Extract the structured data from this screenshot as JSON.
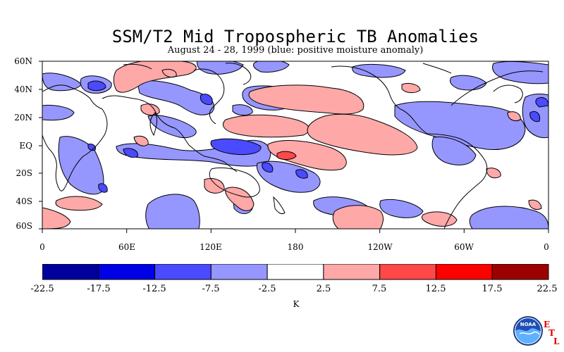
{
  "title": "SSM/T2 Mid Tropospheric TB Anomalies",
  "subtitle": "August 24 - 28, 1999 (blue: positive moisture anomaly)",
  "lat_labels": [
    "60N",
    "40N",
    "20N",
    "EQ",
    "20S",
    "40S",
    "60S"
  ],
  "lon_labels": [
    "0",
    "60E",
    "120E",
    "180",
    "120W",
    "60W",
    "0"
  ],
  "colorbar": {
    "ticks": [
      "-22.5",
      "-17.5",
      "-12.5",
      "-7.5",
      "-2.5",
      "2.5",
      "7.5",
      "12.5",
      "17.5",
      "22.5"
    ],
    "units": "K",
    "colors": [
      "#00009c",
      "#0000e6",
      "#4a4aff",
      "#9696ff",
      "#ffffff",
      "#ffa8a8",
      "#ff4848",
      "#ff0000",
      "#9c0000"
    ]
  },
  "logo": {
    "text": "NOAA",
    "etl": [
      "E",
      "T",
      "L"
    ]
  }
}
